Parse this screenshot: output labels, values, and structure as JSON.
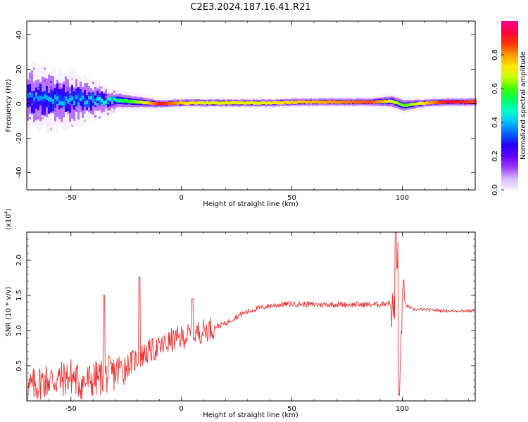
{
  "chart_data": [
    {
      "type": "heatmap",
      "title": "C2E3.2024.187.16.41.R21",
      "xlabel": "Height of straight line (km)",
      "ylabel": "Frequency (Hz)",
      "xlim": [
        -70,
        133
      ],
      "ylim": [
        -50,
        48
      ],
      "xticks": [
        -50,
        0,
        50,
        100
      ],
      "yticks": [
        -40,
        -20,
        0,
        20,
        40
      ],
      "colorbar": {
        "label": "Normalized spectral amplitude",
        "range": [
          0,
          1
        ],
        "ticks": [
          "0.0",
          "0.2",
          "0.4",
          "0.6",
          "0.8"
        ],
        "colors": [
          "#f5f0ff",
          "#d9b8ff",
          "#9a3cff",
          "#6200ff",
          "#2200ff",
          "#0060ff",
          "#00bfff",
          "#00ffd0",
          "#00ff60",
          "#40ff00",
          "#c8ff00",
          "#ffe600",
          "#ff9900",
          "#ff3300",
          "#ff0040",
          "#ff0090"
        ]
      },
      "ridge": [
        {
          "x": -70,
          "freq": 3.5,
          "spread": 12,
          "peak": 0.35
        },
        {
          "x": -60,
          "freq": 3.0,
          "spread": 11,
          "peak": 0.4
        },
        {
          "x": -50,
          "freq": 2.5,
          "spread": 10,
          "peak": 0.4
        },
        {
          "x": -40,
          "freq": 2.0,
          "spread": 7,
          "peak": 0.45
        },
        {
          "x": -30,
          "freq": 2.0,
          "spread": 4,
          "peak": 0.5
        },
        {
          "x": -20,
          "freq": 1.0,
          "spread": 3,
          "peak": 0.65
        },
        {
          "x": -10,
          "freq": 0.0,
          "spread": 2,
          "peak": 0.9
        },
        {
          "x": 0,
          "freq": 0.5,
          "spread": 2,
          "peak": 0.75
        },
        {
          "x": 10,
          "freq": 0.5,
          "spread": 2,
          "peak": 0.7
        },
        {
          "x": 25,
          "freq": 0.5,
          "spread": 2,
          "peak": 0.7
        },
        {
          "x": 40,
          "freq": 0.5,
          "spread": 2,
          "peak": 0.72
        },
        {
          "x": 55,
          "freq": 1.0,
          "spread": 2,
          "peak": 0.76
        },
        {
          "x": 70,
          "freq": 1.0,
          "spread": 2,
          "peak": 0.8
        },
        {
          "x": 85,
          "freq": 1.0,
          "spread": 2,
          "peak": 0.85
        },
        {
          "x": 95,
          "freq": 1.5,
          "spread": 3,
          "peak": 0.7
        },
        {
          "x": 100,
          "freq": -1.0,
          "spread": 3,
          "peak": 0.6
        },
        {
          "x": 110,
          "freq": 0.5,
          "spread": 2,
          "peak": 0.75
        },
        {
          "x": 120,
          "freq": 1.0,
          "spread": 2,
          "peak": 0.92
        },
        {
          "x": 133,
          "freq": 1.0,
          "spread": 2,
          "peak": 0.85
        }
      ]
    },
    {
      "type": "line",
      "xlabel": "Height of straight line (km)",
      "ylabel": "SNR (10 * v/v)",
      "yscale_label": "(x10",
      "yscale_exp": "4",
      "yscale_close": ")",
      "xlim": [
        -70,
        133
      ],
      "ylim": [
        0,
        2.4
      ],
      "xticks": [
        -50,
        0,
        50,
        100
      ],
      "yticks": [
        "0.5",
        "1.0",
        "1.5",
        "2.0"
      ],
      "series": [
        {
          "name": "SNR",
          "color": "#ee3333",
          "x": [
            -70,
            -65,
            -60,
            -55,
            -50,
            -45,
            -40,
            -35,
            -30,
            -25,
            -20,
            -15,
            -10,
            -5,
            0,
            5,
            10,
            15,
            20,
            25,
            30,
            35,
            40,
            45,
            50,
            60,
            70,
            80,
            90,
            94,
            97,
            98,
            99,
            100,
            102,
            105,
            110,
            120,
            133
          ],
          "values": [
            0.15,
            0.25,
            0.3,
            0.3,
            0.35,
            0.25,
            0.3,
            0.35,
            0.4,
            0.5,
            0.6,
            0.7,
            0.75,
            0.85,
            0.9,
            0.95,
            1.0,
            1.05,
            1.1,
            1.2,
            1.27,
            1.32,
            1.35,
            1.37,
            1.38,
            1.37,
            1.37,
            1.37,
            1.37,
            1.4,
            1.2,
            2.2,
            0.4,
            1.5,
            1.35,
            1.3,
            1.3,
            1.28,
            1.28
          ]
        }
      ],
      "spikes": [
        {
          "x": -35,
          "value": 1.5
        },
        {
          "x": -19,
          "value": 1.76
        },
        {
          "x": 5,
          "value": 1.45
        },
        {
          "x": 97,
          "value": 2.4
        },
        {
          "x": 98.5,
          "value": 0.08
        }
      ]
    }
  ]
}
